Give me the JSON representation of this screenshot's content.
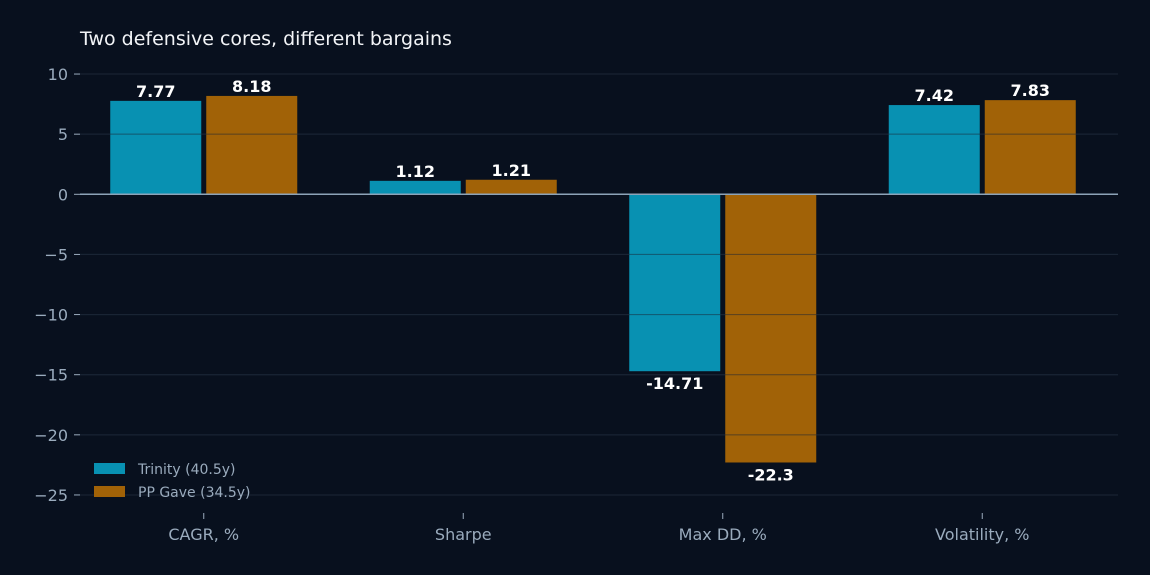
{
  "chart_data": {
    "type": "bar",
    "title": "Two defensive cores, different bargains",
    "xlabel": "",
    "ylabel": "",
    "categories": [
      "CAGR, %",
      "Sharpe",
      "Max DD, %",
      "Volatility, %"
    ],
    "series": [
      {
        "name": "Trinity (40.5y)",
        "color": "#0891b2",
        "values": [
          7.77,
          1.12,
          -14.71,
          7.42
        ],
        "labels": [
          "7.77",
          "1.12",
          "-14.71",
          "7.42"
        ]
      },
      {
        "name": "PP Gave (34.5y)",
        "color": "#a16207",
        "values": [
          8.18,
          1.21,
          -22.3,
          7.83
        ],
        "labels": [
          "8.18",
          "1.21",
          "-22.3",
          "7.83"
        ]
      }
    ],
    "yticks": [
      10,
      5,
      0,
      -5,
      -10,
      -15,
      -20,
      -25
    ],
    "ytick_labels": [
      "10",
      "5",
      "0",
      "−5",
      "−10",
      "−15",
      "−20",
      "−25"
    ],
    "ylim": [
      -26.5,
      11.5
    ],
    "grid": true,
    "legend_position": "lower-left",
    "colors": {
      "background": "#08101e",
      "grid": "#1b2636",
      "zero_line": "#8da3b8",
      "tick_text": "#9aabbd",
      "title_text": "#f2f4f7"
    }
  }
}
